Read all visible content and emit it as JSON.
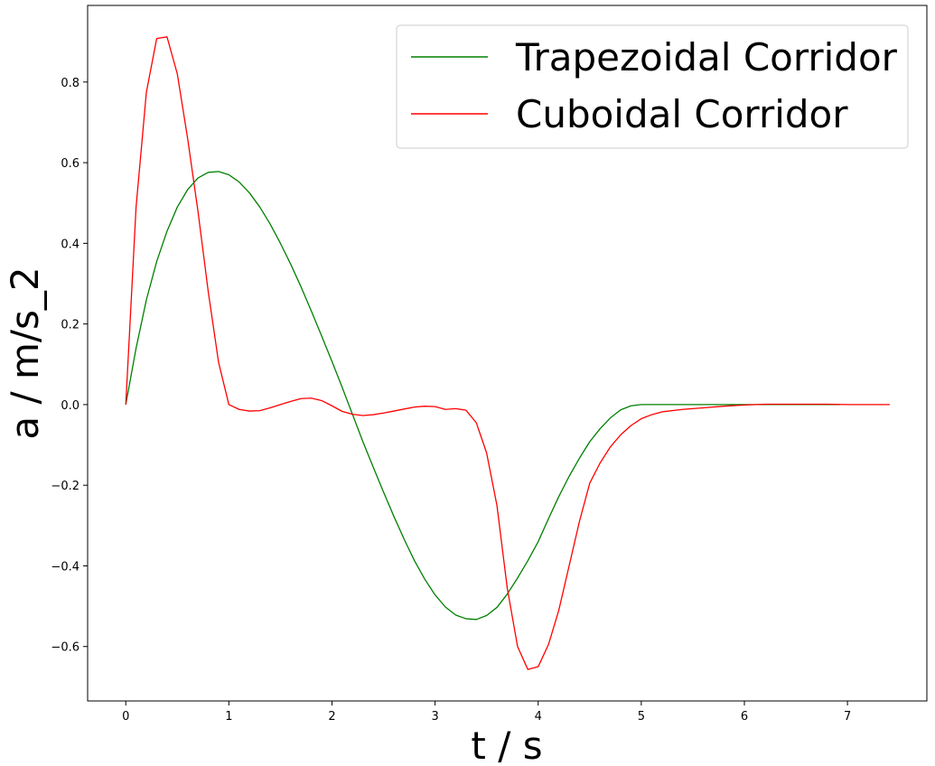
{
  "chart_data": {
    "type": "line",
    "title": "",
    "xlabel": "t / s",
    "ylabel": "a / m/s_2",
    "xlim": [
      -0.37,
      7.77
    ],
    "ylim": [
      -0.735,
      0.99
    ],
    "xticks": [
      0,
      1,
      2,
      3,
      4,
      5,
      6,
      7
    ],
    "xtick_labels": [
      "0",
      "1",
      "2",
      "3",
      "4",
      "5",
      "6",
      "7"
    ],
    "yticks": [
      -0.6,
      -0.4,
      -0.2,
      0.0,
      0.2,
      0.4,
      0.6,
      0.8
    ],
    "ytick_labels": [
      "−0.6",
      "−0.4",
      "−0.2",
      "0.0",
      "0.2",
      "0.4",
      "0.6",
      "0.8"
    ],
    "grid": false,
    "legend_position": "top-right",
    "series": [
      {
        "name": "Trapezoidal Corridor",
        "color": "#008000",
        "x": [
          0,
          0.1,
          0.2,
          0.3,
          0.4,
          0.5,
          0.6,
          0.7,
          0.8,
          0.9,
          1.0,
          1.1,
          1.2,
          1.3,
          1.4,
          1.5,
          1.6,
          1.7,
          1.8,
          1.9,
          2.0,
          2.1,
          2.2,
          2.3,
          2.4,
          2.5,
          2.6,
          2.7,
          2.8,
          2.9,
          3.0,
          3.1,
          3.2,
          3.3,
          3.4,
          3.5,
          3.6,
          3.7,
          3.8,
          3.9,
          4.0,
          4.1,
          4.2,
          4.3,
          4.4,
          4.5,
          4.6,
          4.7,
          4.8,
          4.9,
          5.0,
          5.2,
          5.5,
          6.0,
          6.5,
          6.93
        ],
        "y": [
          0.0,
          0.14,
          0.26,
          0.355,
          0.43,
          0.49,
          0.533,
          0.562,
          0.576,
          0.578,
          0.57,
          0.552,
          0.525,
          0.49,
          0.448,
          0.4,
          0.348,
          0.292,
          0.232,
          0.17,
          0.107,
          0.042,
          -0.025,
          -0.092,
          -0.155,
          -0.217,
          -0.277,
          -0.334,
          -0.387,
          -0.433,
          -0.472,
          -0.502,
          -0.522,
          -0.531,
          -0.533,
          -0.523,
          -0.503,
          -0.47,
          -0.43,
          -0.387,
          -0.34,
          -0.283,
          -0.228,
          -0.178,
          -0.133,
          -0.092,
          -0.06,
          -0.033,
          -0.013,
          -0.003,
          0.0,
          0.0,
          0.0,
          0.0,
          0.0,
          0.0
        ]
      },
      {
        "name": "Cuboidal Corridor",
        "color": "#ff0000",
        "x": [
          0,
          0.1,
          0.2,
          0.3,
          0.4,
          0.5,
          0.6,
          0.7,
          0.8,
          0.9,
          1.0,
          1.1,
          1.2,
          1.3,
          1.4,
          1.5,
          1.6,
          1.7,
          1.8,
          1.9,
          2.0,
          2.1,
          2.2,
          2.3,
          2.4,
          2.5,
          2.6,
          2.7,
          2.8,
          2.9,
          3.0,
          3.1,
          3.2,
          3.3,
          3.4,
          3.5,
          3.6,
          3.7,
          3.8,
          3.9,
          4.0,
          4.1,
          4.2,
          4.3,
          4.4,
          4.5,
          4.6,
          4.7,
          4.8,
          4.9,
          5.0,
          5.1,
          5.2,
          5.4,
          5.6,
          5.8,
          6.0,
          6.2,
          6.5,
          6.8,
          7.0,
          7.2,
          7.41
        ],
        "y": [
          0.0,
          0.49,
          0.775,
          0.908,
          0.912,
          0.82,
          0.66,
          0.48,
          0.28,
          0.105,
          0.0,
          -0.012,
          -0.016,
          -0.015,
          -0.008,
          0.0,
          0.008,
          0.015,
          0.016,
          0.01,
          -0.003,
          -0.017,
          -0.024,
          -0.027,
          -0.025,
          -0.021,
          -0.016,
          -0.011,
          -0.006,
          -0.004,
          -0.005,
          -0.012,
          -0.01,
          -0.014,
          -0.045,
          -0.12,
          -0.25,
          -0.455,
          -0.6,
          -0.657,
          -0.65,
          -0.595,
          -0.51,
          -0.4,
          -0.29,
          -0.195,
          -0.145,
          -0.105,
          -0.075,
          -0.052,
          -0.035,
          -0.025,
          -0.018,
          -0.012,
          -0.008,
          -0.004,
          -0.001,
          0.001,
          0.001,
          0.001,
          0.0,
          0.0,
          0.0
        ]
      }
    ]
  }
}
